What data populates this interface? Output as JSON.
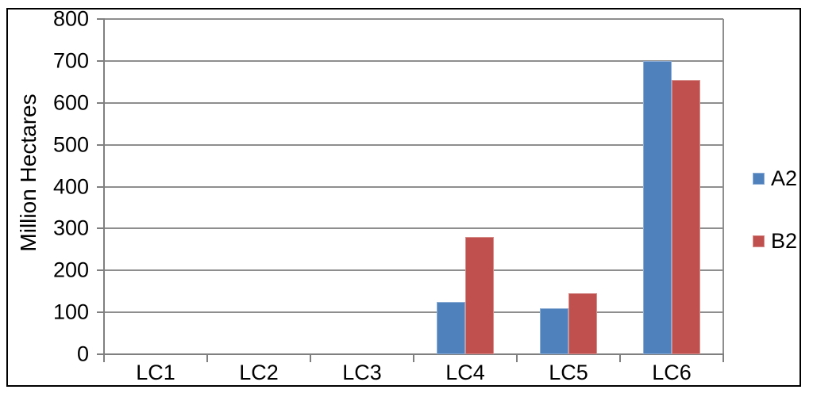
{
  "chart_data": {
    "type": "bar",
    "title": "",
    "ylabel": "Million Hectares",
    "xlabel": "",
    "categories": [
      "LC1",
      "LC2",
      "LC3",
      "LC4",
      "LC5",
      "LC6"
    ],
    "series": [
      {
        "name": "A2",
        "color": "#4F81BD",
        "values": [
          0,
          0,
          0,
          125,
          110,
          700
        ]
      },
      {
        "name": "B2",
        "color": "#C0504D",
        "values": [
          0,
          0,
          0,
          280,
          145,
          655
        ]
      }
    ],
    "ylim": [
      0,
      800
    ],
    "yticks": [
      0,
      100,
      200,
      300,
      400,
      500,
      600,
      700,
      800
    ],
    "grid": "horizontal",
    "legend_position": "right",
    "colors": {
      "gridline": "#8E8E8E",
      "axis": "#7F7F7F",
      "frame": "#000000",
      "text": "#000000",
      "background": "#FFFFFF"
    }
  }
}
